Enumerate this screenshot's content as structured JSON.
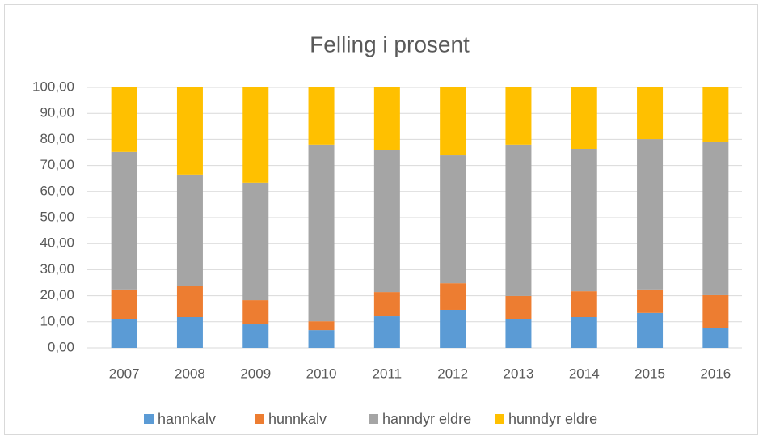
{
  "chart_data": {
    "type": "stacked_bar",
    "title": "Felling i prosent",
    "categories": [
      "2007",
      "2008",
      "2009",
      "2010",
      "2011",
      "2012",
      "2013",
      "2014",
      "2015",
      "2016"
    ],
    "series": [
      {
        "name": "hannkalv",
        "color": "#5b9bd5",
        "values": [
          10.9,
          11.8,
          9.0,
          6.8,
          12.1,
          14.6,
          10.9,
          11.8,
          13.4,
          7.5
        ]
      },
      {
        "name": "hunnkalv",
        "color": "#ed7d31",
        "values": [
          11.5,
          12.1,
          9.3,
          3.4,
          9.3,
          10.2,
          9.0,
          9.9,
          9.0,
          12.7
        ]
      },
      {
        "name": "hanndyr eldre",
        "color": "#a5a5a5",
        "values": [
          52.8,
          42.6,
          45.1,
          67.8,
          54.4,
          49.1,
          58.1,
          54.7,
          57.7,
          59.0
        ]
      },
      {
        "name": "hunndyr eldre",
        "color": "#ffc000",
        "values": [
          24.8,
          33.5,
          36.6,
          22.0,
          24.2,
          26.1,
          22.0,
          23.6,
          19.9,
          20.8
        ]
      }
    ],
    "ylim": [
      0,
      100
    ],
    "yticks": [
      {
        "value": 0,
        "label": "0,00"
      },
      {
        "value": 10,
        "label": "10,00"
      },
      {
        "value": 20,
        "label": "20,00"
      },
      {
        "value": 30,
        "label": "30,00"
      },
      {
        "value": 40,
        "label": "40,00"
      },
      {
        "value": 50,
        "label": "50,00"
      },
      {
        "value": 60,
        "label": "60,00"
      },
      {
        "value": 70,
        "label": "70,00"
      },
      {
        "value": 80,
        "label": "80,00"
      },
      {
        "value": 90,
        "label": "90,00"
      },
      {
        "value": 100,
        "label": "100,00"
      }
    ],
    "grid": true,
    "legend": "bottom"
  }
}
